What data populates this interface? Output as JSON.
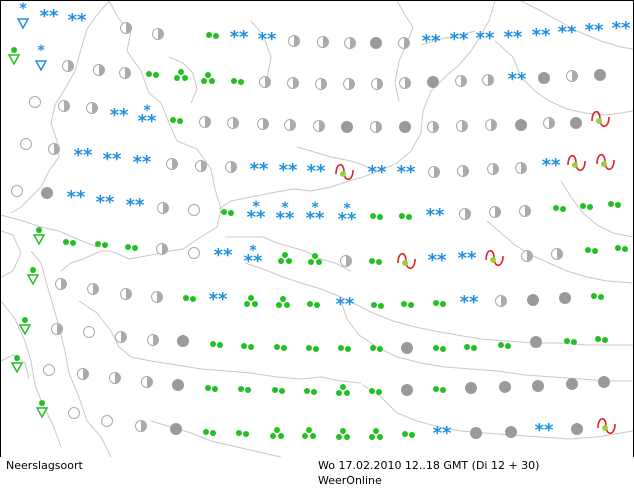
{
  "map": {
    "symbol_types": {
      "snow": {
        "name": "snow-icon",
        "glyph": "**",
        "color": "#1f8fe0"
      },
      "rain": {
        "name": "rain-icon",
        "color": "#22c022"
      },
      "showers": {
        "name": "showers-icon",
        "color": "#22c022"
      },
      "half": {
        "name": "half-cloud-icon",
        "color": "#999999"
      },
      "cloud": {
        "name": "overcast-icon",
        "color": "#9a9a9a"
      },
      "clear": {
        "name": "clear-icon",
        "color": "#aaaaaa"
      },
      "thunder": {
        "name": "thunder-icon",
        "color": "#e02020"
      }
    },
    "coast_color": "#c8c8c8"
  },
  "footer": {
    "left": "Neerslagsoort",
    "time": "Wo 17.02.2010 12..18 GMT (Di 12 + 30)",
    "credit": "WeerOnline"
  }
}
